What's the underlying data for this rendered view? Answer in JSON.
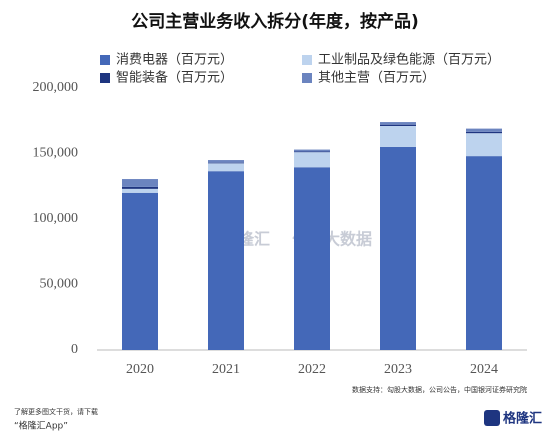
{
  "chart_data": {
    "type": "stacked_bar",
    "title": "公司主营业务收入拆分(年度，按产品)",
    "categories": [
      "2020",
      "2021",
      "2022",
      "2023",
      "2024"
    ],
    "series": [
      {
        "name": "消费电器（百万元）",
        "color": "#4468b8",
        "values": [
          120000,
          136500,
          139500,
          155000,
          148000
        ]
      },
      {
        "name": "工业制品及绿色能源（百万元）",
        "color": "#bdd3ee",
        "values": [
          3000,
          6000,
          11500,
          16000,
          17500
        ]
      },
      {
        "name": "智能装备（百万元）",
        "color": "#1e3580",
        "values": [
          1500,
          500,
          500,
          1000,
          1000
        ]
      },
      {
        "name": "其他主营（百万元）",
        "color": "#6b84bf",
        "values": [
          6000,
          2000,
          1500,
          2000,
          2500
        ]
      }
    ],
    "ylim": [
      0,
      200000
    ],
    "yticks": [
      0,
      {
        "value": 50000,
        "label": "50,000"
      },
      {
        "value": 100000,
        "label": "100,000"
      },
      {
        "value": 150000,
        "label": "150,000"
      },
      {
        "value": 200000,
        "label": "200,000"
      }
    ],
    "source": "数据支持：勾股大数据，公司公告，中国银河证券研究院",
    "watermarks": [
      "格隆汇",
      "勾股大数据"
    ],
    "footer_lines": [
      "了解更多图文干货，请下载",
      "“格隆汇App”"
    ],
    "logo": "格隆汇"
  }
}
